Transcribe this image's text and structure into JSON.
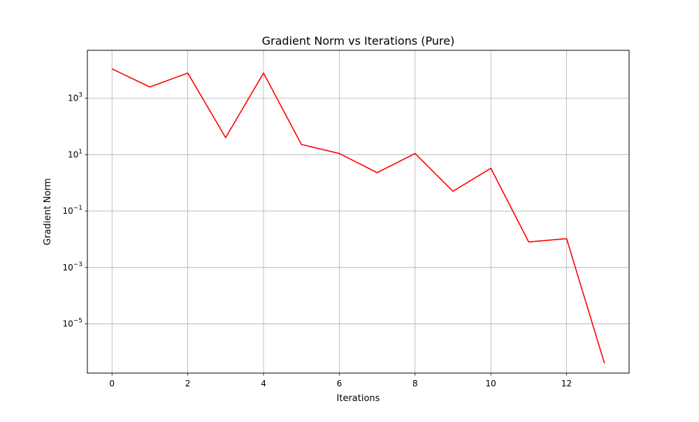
{
  "chart_data": {
    "type": "line",
    "title": "Gradient Norm vs Iterations (Pure)",
    "xlabel": "Iterations",
    "ylabel": "Gradient Norm",
    "yscale": "log",
    "grid": true,
    "xlim": [
      -0.65,
      13.65
    ],
    "ylim": [
      1.8e-07,
      50000
    ],
    "x_ticks": [
      0,
      2,
      4,
      6,
      8,
      10,
      12
    ],
    "x_tick_labels": [
      "0",
      "2",
      "4",
      "6",
      "8",
      "10",
      "12"
    ],
    "y_ticks": [
      1e-05,
      0.001,
      0.1,
      10,
      1000
    ],
    "y_tick_labels": [
      {
        "base": "10",
        "exp": "−5"
      },
      {
        "base": "10",
        "exp": "−3"
      },
      {
        "base": "10",
        "exp": "−1"
      },
      {
        "base": "10",
        "exp": "1"
      },
      {
        "base": "10",
        "exp": "3"
      }
    ],
    "series": [
      {
        "color": "#ff0000",
        "x": [
          0,
          1,
          2,
          3,
          4,
          5,
          6,
          7,
          8,
          9,
          10,
          11,
          12,
          13
        ],
        "y": [
          11000,
          2500,
          7800,
          40,
          7800,
          23,
          11,
          2.3,
          11,
          0.5,
          3.3,
          0.008,
          0.0105,
          4e-07
        ]
      }
    ]
  }
}
